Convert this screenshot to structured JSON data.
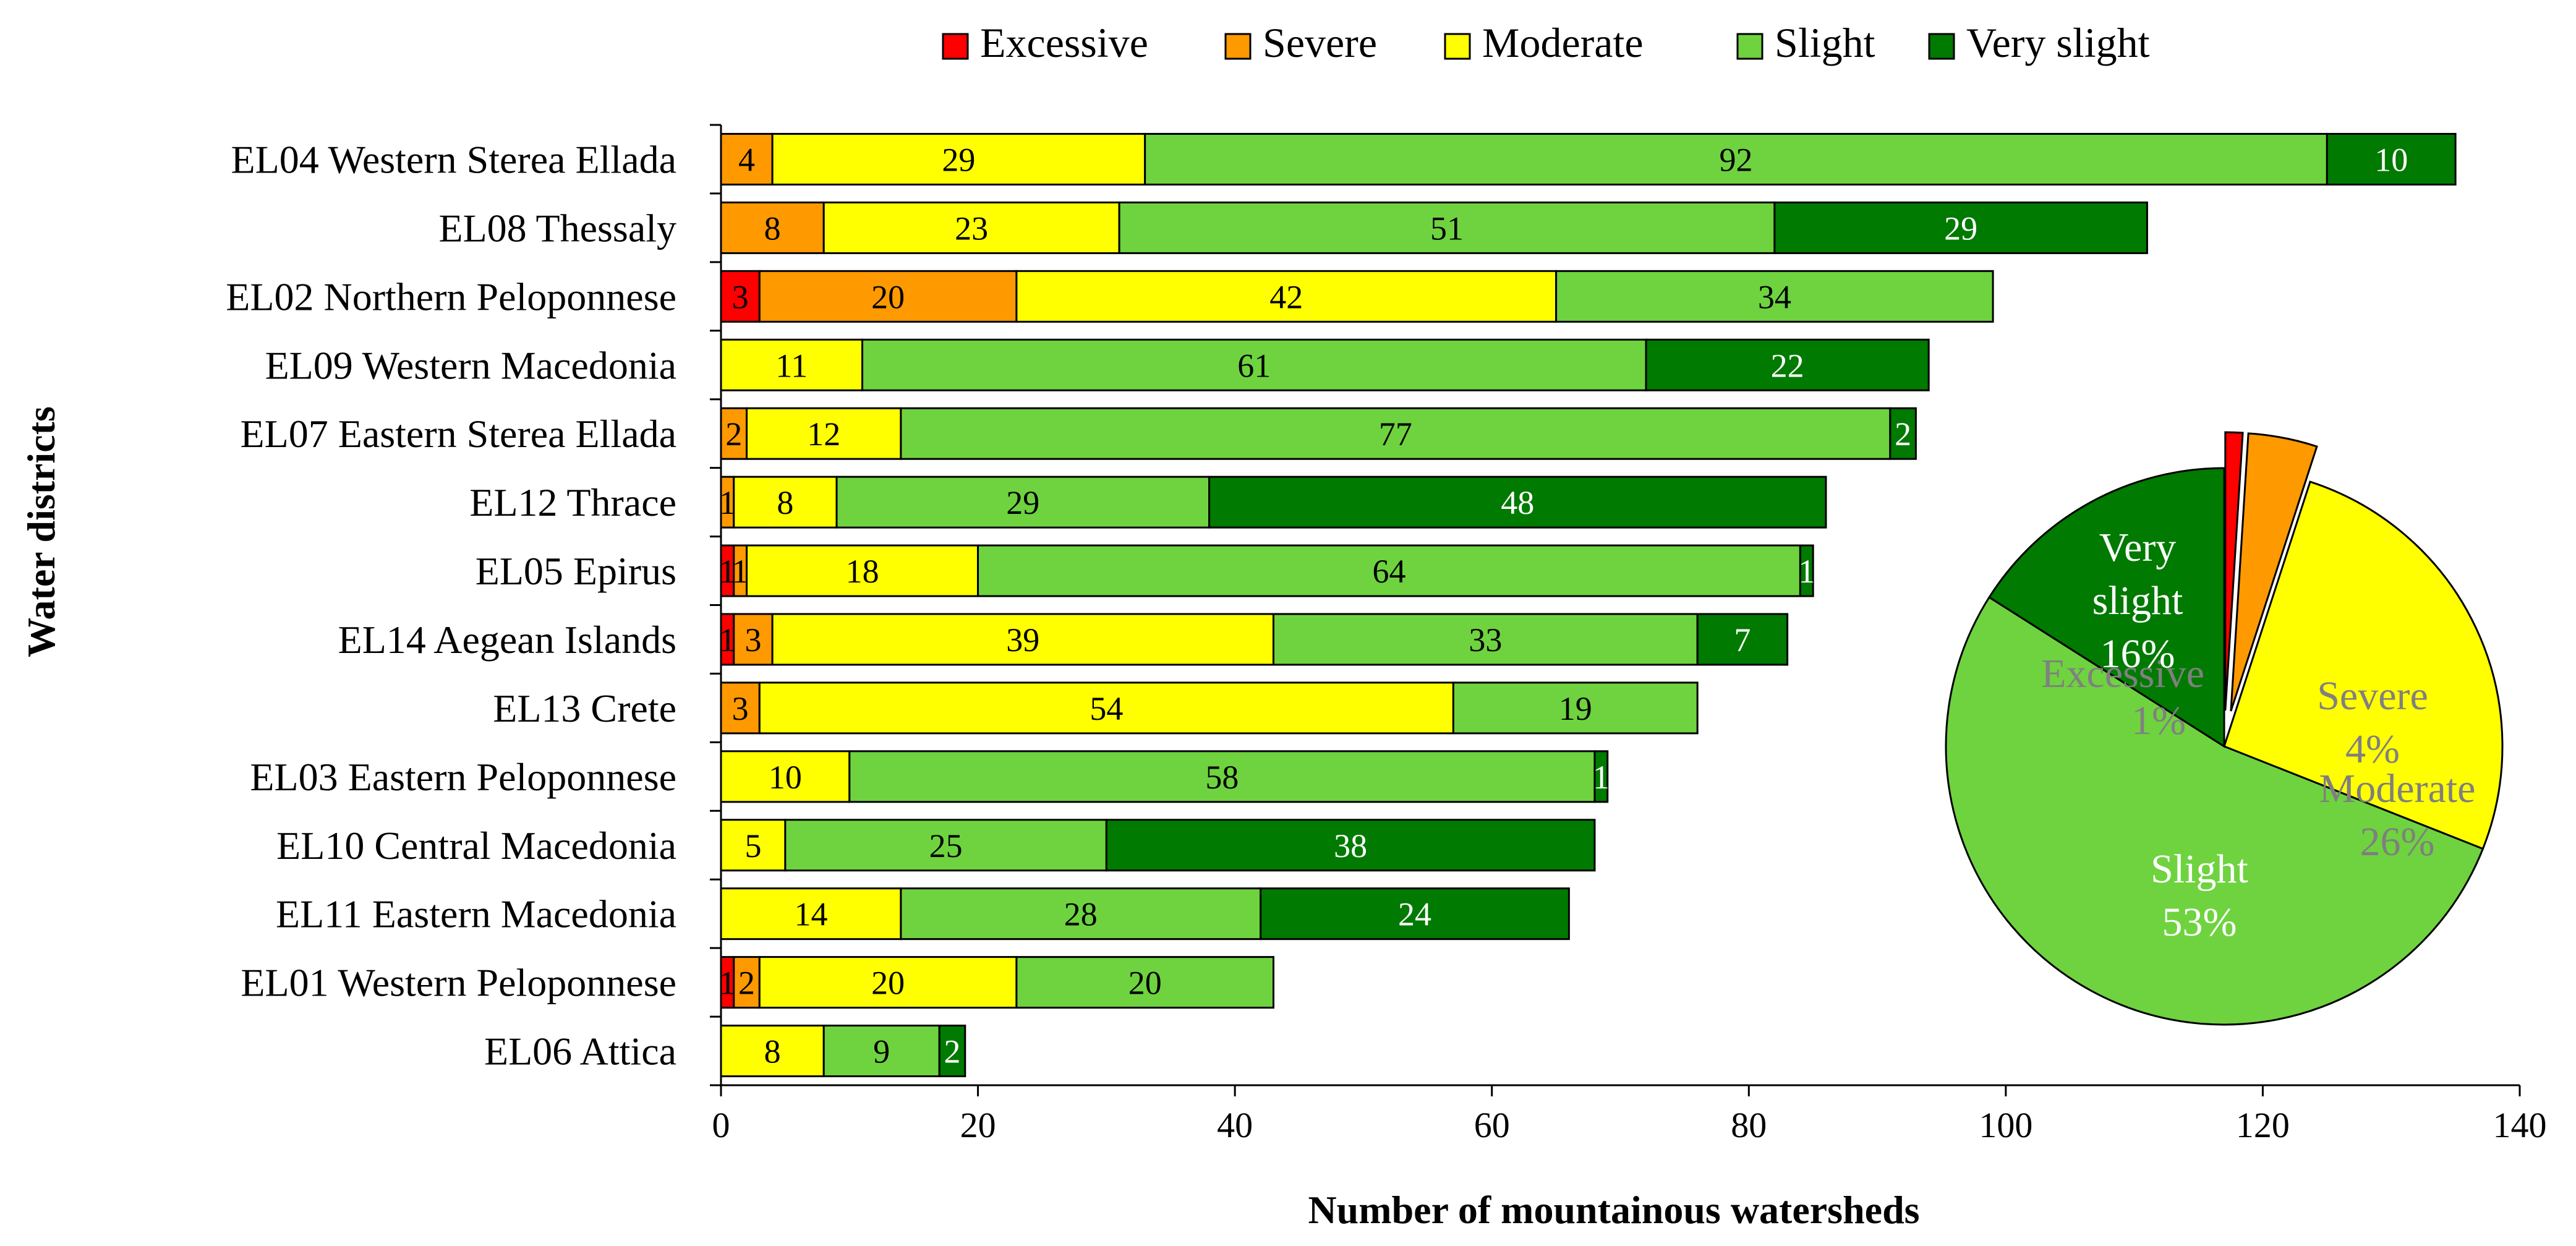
{
  "chart_data": {
    "type": "bar",
    "orientation": "horizontal",
    "stacked": true,
    "xlabel": "Number of mountainous watersheds",
    "ylabel": "Water districts",
    "xlim": [
      0,
      140
    ],
    "xticks": [
      0,
      20,
      40,
      60,
      80,
      100,
      120,
      140
    ],
    "categories": [
      "EL04 Western Sterea Ellada",
      "EL08 Thessaly",
      "EL02 Northern Peloponnese",
      "EL09 Western Macedonia",
      "EL07 Eastern Sterea Ellada",
      "EL12 Thrace",
      "EL05 Epirus",
      "EL14 Aegean Islands",
      "EL13 Crete",
      "EL03 Eastern Peloponnese",
      "EL10 Central Macedonia",
      "EL11 Eastern Macedonia",
      "EL01 Western Peloponnese",
      "EL06 Attica"
    ],
    "series": [
      {
        "name": "Excessive",
        "color": "#ff0000",
        "text_color": "#000000",
        "values": [
          0,
          0,
          3,
          0,
          0,
          0,
          1,
          1,
          0,
          0,
          0,
          0,
          1,
          0
        ]
      },
      {
        "name": "Severe",
        "color": "#ff9900",
        "text_color": "#000000",
        "values": [
          4,
          8,
          20,
          0,
          2,
          1,
          1,
          3,
          3,
          0,
          0,
          0,
          2,
          0
        ]
      },
      {
        "name": "Moderate",
        "color": "#ffff00",
        "text_color": "#000000",
        "values": [
          29,
          23,
          42,
          11,
          12,
          8,
          18,
          39,
          54,
          10,
          5,
          14,
          20,
          8
        ]
      },
      {
        "name": "Slight",
        "color": "#6ed33f",
        "text_color": "#000000",
        "values": [
          92,
          51,
          34,
          61,
          77,
          29,
          64,
          33,
          19,
          58,
          25,
          28,
          20,
          9
        ]
      },
      {
        "name": "Very slight",
        "color": "#007a00",
        "text_color": "#ffffff",
        "values": [
          10,
          29,
          0,
          22,
          2,
          48,
          1,
          7,
          0,
          1,
          38,
          24,
          0,
          2
        ]
      }
    ],
    "legend": {
      "position": "top"
    },
    "pie": {
      "type": "pie",
      "slices": [
        {
          "name": "Excessive",
          "value": 1,
          "label_name": "Excessive",
          "label_pct": "1%",
          "color": "#ff0000",
          "exploded": true
        },
        {
          "name": "Severe",
          "value": 4,
          "label_name": "Severe",
          "label_pct": "4%",
          "color": "#ff9900",
          "exploded": true
        },
        {
          "name": "Moderate",
          "value": 26,
          "label_name": "Moderate",
          "label_pct": "26%",
          "color": "#ffff00",
          "exploded": false
        },
        {
          "name": "Slight",
          "value": 53,
          "label_name": "Slight",
          "label_pct": "53%",
          "color": "#6ed33f",
          "exploded": false
        },
        {
          "name": "Very slight",
          "value": 16,
          "label_name": "Very slight",
          "label_pct": "16%",
          "color": "#007a00",
          "exploded": false
        }
      ]
    }
  }
}
